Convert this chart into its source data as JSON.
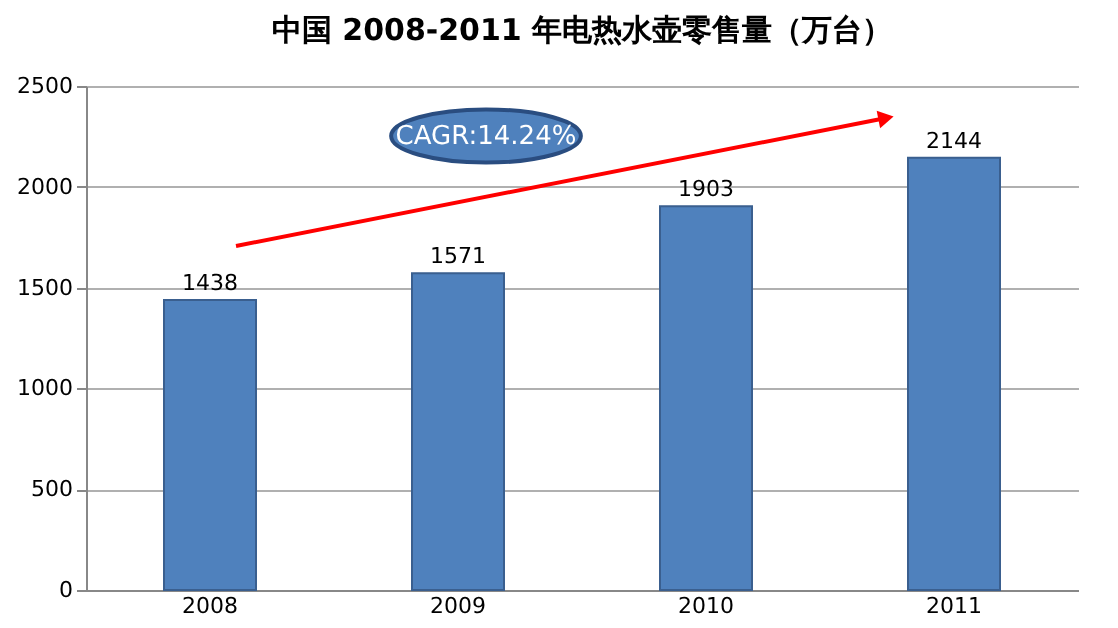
{
  "chart_data": {
    "type": "bar",
    "title": "中国 2008-2011 年电热水壶零售量（万台）",
    "categories": [
      "2008",
      "2009",
      "2010",
      "2011"
    ],
    "values": [
      1438,
      1571,
      1903,
      2144
    ],
    "color": "#4f81bd",
    "ylim": [
      0,
      2500
    ],
    "yticks": [
      0,
      500,
      1000,
      1500,
      2000,
      2500
    ],
    "grid": "y",
    "data_labels": true,
    "annotations": [
      "CAGR:14.24%"
    ]
  }
}
